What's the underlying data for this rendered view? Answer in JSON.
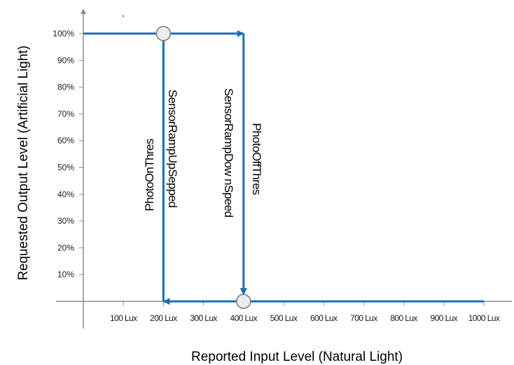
{
  "colors": {
    "curve": "#1f6bb5",
    "axis": "#8c8c8c",
    "marker_fill": "#ececec",
    "marker_stroke": "#7a7a7a"
  },
  "axes": {
    "x_title": "Reported Input Level (Natural Light)",
    "y_title": "Requested Output Level (Artificial Light)",
    "x_ticks": [
      "100 Lux",
      "200 Lux",
      "300 Lux",
      "400 Lux",
      "500 Lux",
      "600 Lux",
      "700 Lux",
      "800 Lux",
      "900 Lux",
      "1000 Lux"
    ],
    "y_ticks": [
      "10%",
      "20%",
      "30%",
      "40%",
      "50%",
      "60%",
      "70%",
      "80%",
      "90%",
      "100%"
    ]
  },
  "annotations": {
    "photo_on": "PhotoOnThres",
    "ramp_up": "SensorRampUpSepped",
    "ramp_down": "SensorRampDow nSpeed",
    "photo_off": "PhotoOffThres"
  },
  "curve": {
    "upper_level_pct": 100,
    "lower_level_pct": 0,
    "x_start_lux": 0,
    "x_end_lux": 1000,
    "photo_on_lux": 200,
    "photo_off_lux": 400
  }
}
